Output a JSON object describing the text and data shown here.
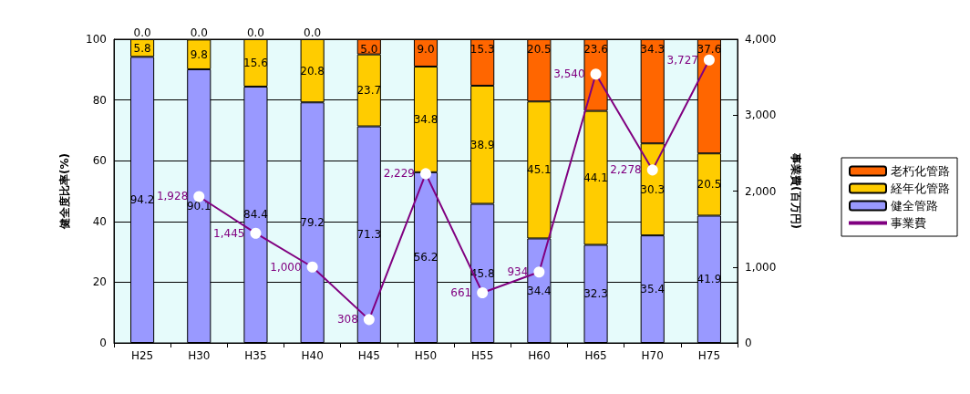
{
  "chart_data": {
    "type": "bar",
    "stacked": true,
    "ylabel": "健全度比率(%)",
    "y2label": "事業費(百万円)",
    "categories": [
      "H25",
      "H30",
      "H35",
      "H40",
      "H45",
      "H50",
      "H55",
      "H60",
      "H65",
      "H70",
      "H75"
    ],
    "ylim": [
      0,
      100
    ],
    "yticks": [
      0,
      20,
      40,
      60,
      80,
      100
    ],
    "y2lim": [
      0,
      4000
    ],
    "y2ticks": [
      {
        "value": 0,
        "label": "0"
      },
      {
        "value": 1000,
        "label": "1,000"
      },
      {
        "value": 2000,
        "label": "2,000"
      },
      {
        "value": 3000,
        "label": "3,000"
      },
      {
        "value": 4000,
        "label": "4,000"
      }
    ],
    "grid": "y",
    "legend": "right",
    "series": [
      {
        "name": "健全管路",
        "color": "#9999ff",
        "values": [
          94.2,
          90.1,
          84.4,
          79.2,
          71.3,
          56.2,
          45.8,
          34.4,
          32.3,
          35.4,
          41.9
        ],
        "value_labels": [
          "94.2",
          "90.1",
          "84.4",
          "79.2",
          "71.3",
          "56.2",
          "45.8",
          "34.4",
          "32.3",
          "35.4",
          "41.9"
        ]
      },
      {
        "name": "経年化管路",
        "color": "#ffcc00",
        "values": [
          5.8,
          9.8,
          15.6,
          20.8,
          23.7,
          34.8,
          38.9,
          45.1,
          44.1,
          30.3,
          20.5
        ],
        "value_labels": [
          "5.8",
          "9.8",
          "15.6",
          "20.8",
          "23.7",
          "34.8",
          "38.9",
          "45.1",
          "44.1",
          "30.3",
          "20.5"
        ]
      },
      {
        "name": "老朽化管路",
        "color": "#ff6600",
        "values": [
          0.0,
          0.0,
          0.0,
          0.0,
          5.0,
          9.0,
          15.3,
          20.5,
          23.6,
          34.3,
          37.6
        ],
        "value_labels": [
          "0.0",
          "0.0",
          "0.0",
          "0.0",
          "5.0",
          "9.0",
          "15.3",
          "20.5",
          "23.6",
          "34.3",
          "37.6"
        ]
      },
      {
        "name": "事業費",
        "type": "line",
        "axis": "y2",
        "color": "#800080",
        "marker": "circle",
        "line_style": "solid",
        "values": [
          null,
          1928,
          1445,
          1000,
          308,
          2229,
          661,
          934,
          3540,
          2278,
          3727
        ],
        "value_labels": [
          null,
          "1,928",
          "1,445",
          "1,000",
          "308",
          "2,229",
          "661",
          "934",
          "3,540",
          "2,278",
          "3,727"
        ]
      }
    ]
  }
}
